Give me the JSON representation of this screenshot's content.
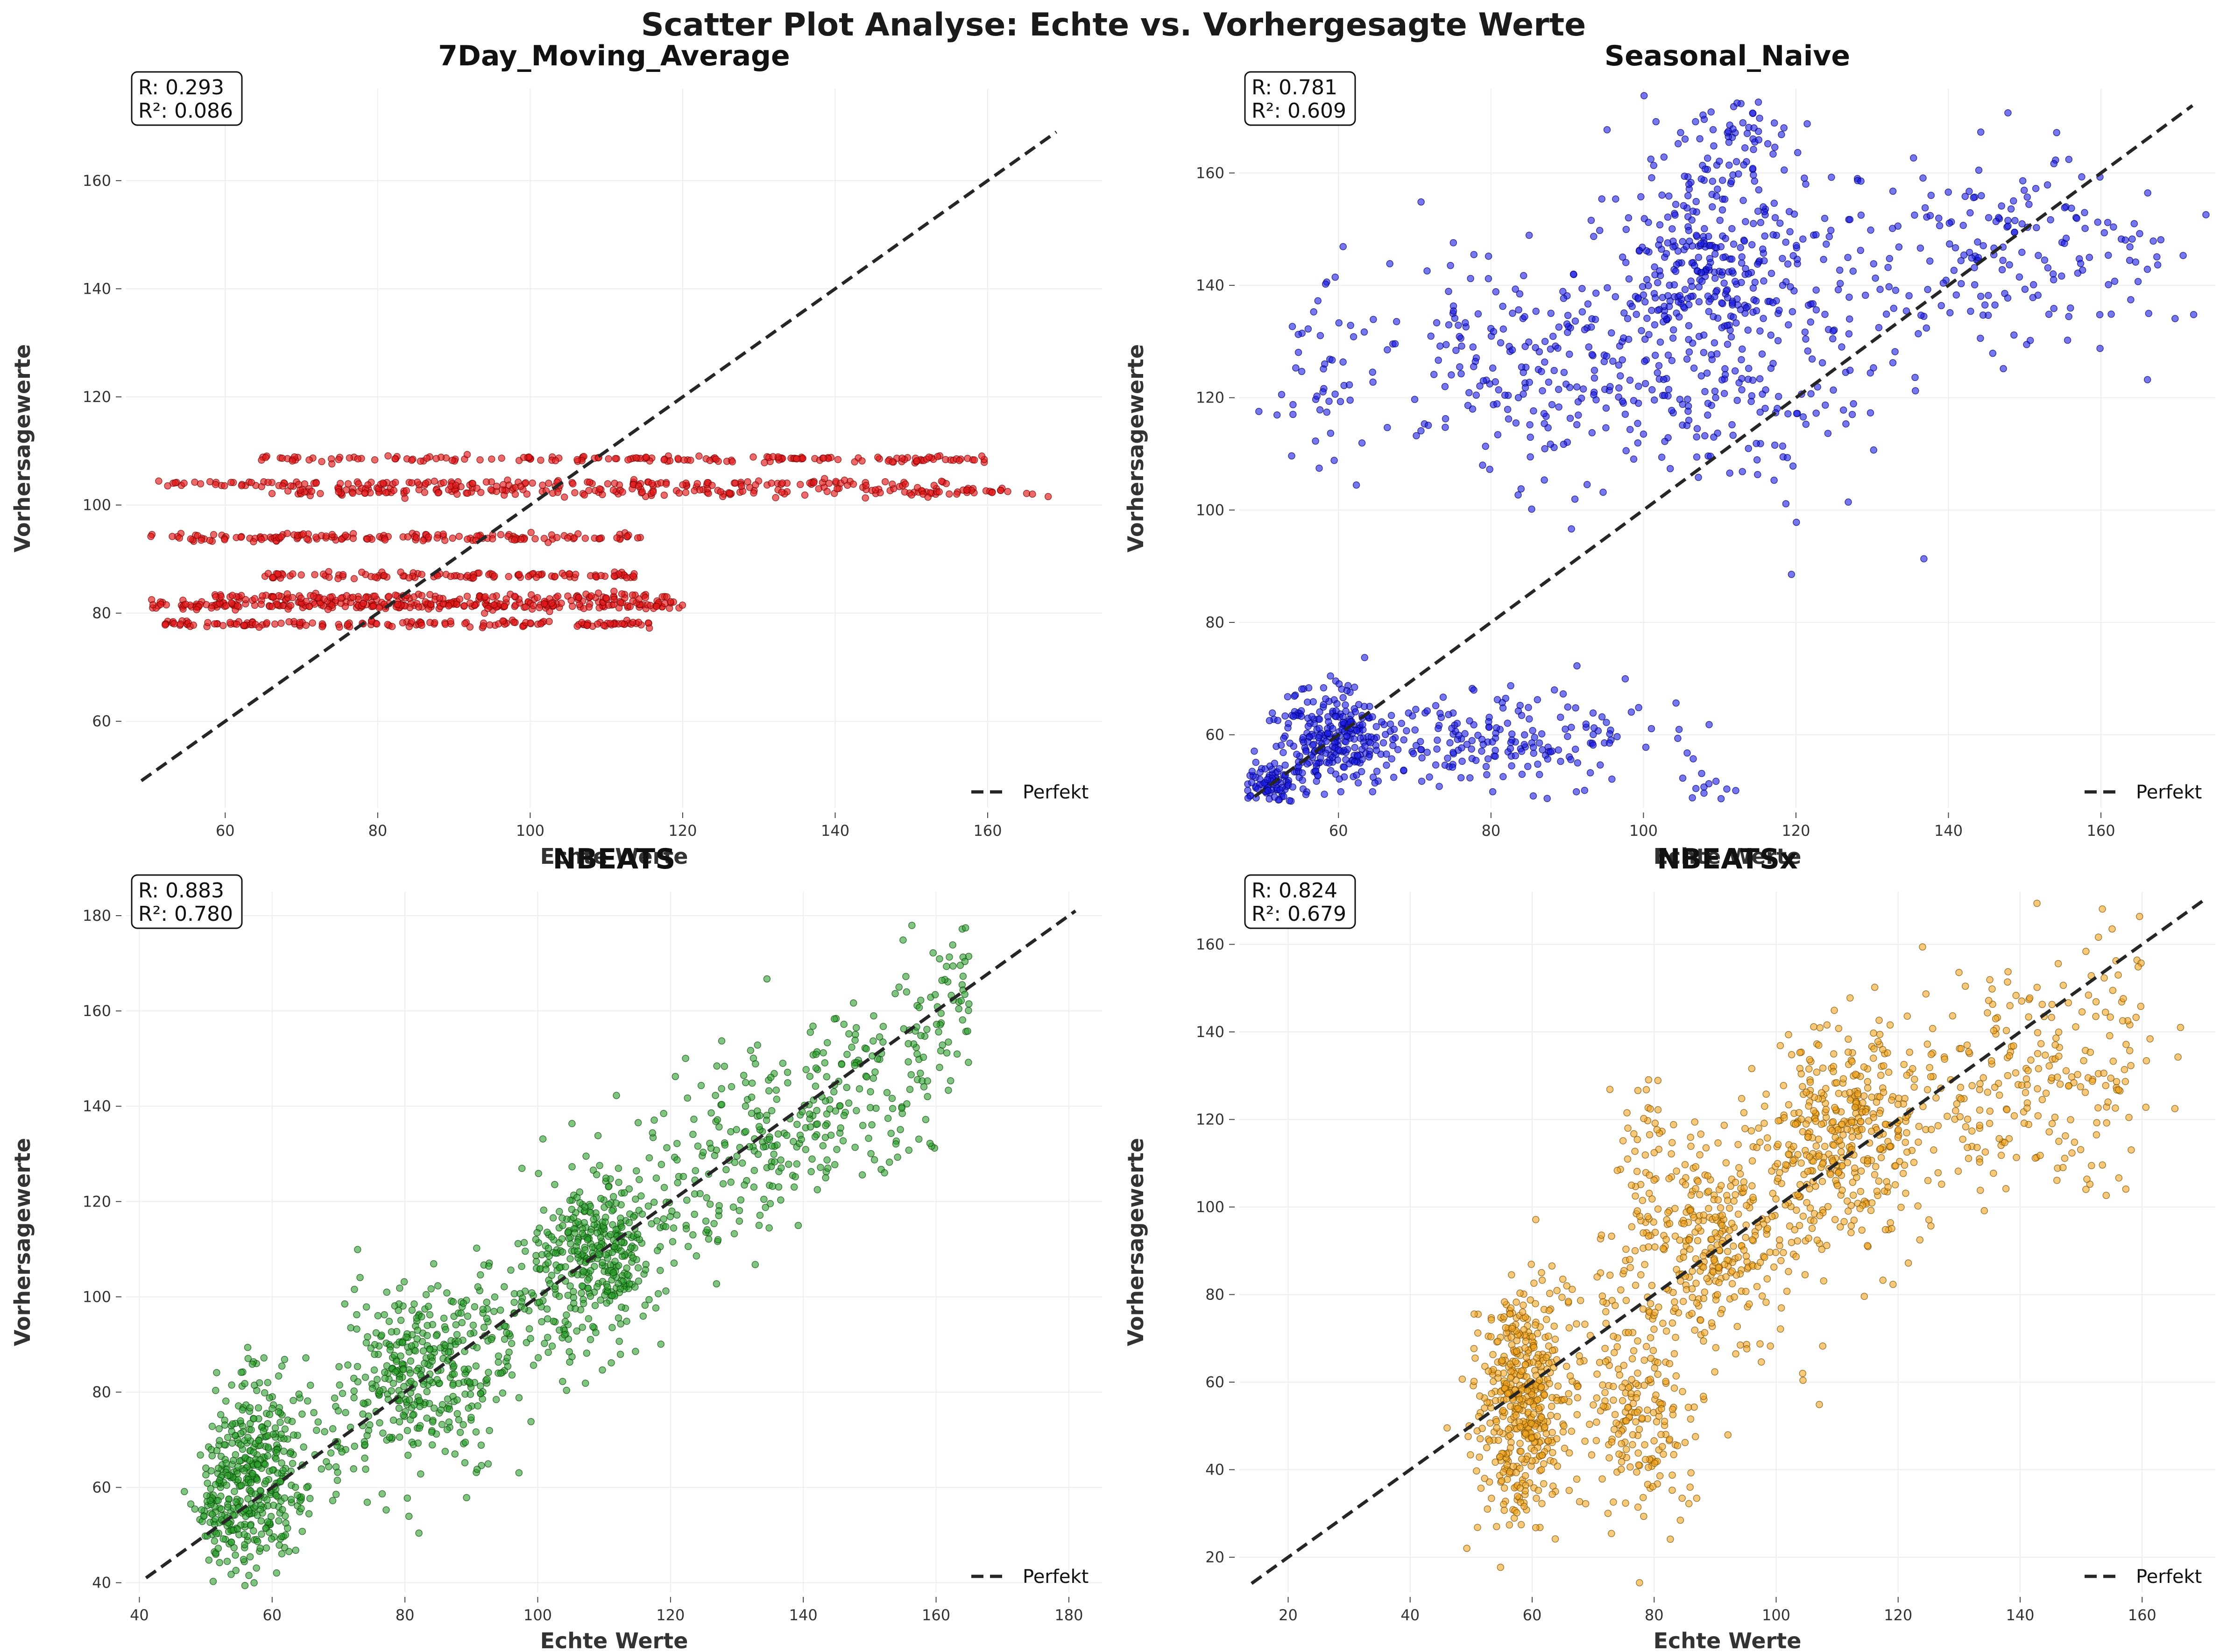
{
  "figure": {
    "title": "Scatter Plot Analyse: Echte vs. Vorhergesagte Werte"
  },
  "chart_data": [
    {
      "type": "scatter",
      "title": "7Day_Moving_Average",
      "xlabel": "Echte Werte",
      "ylabel": "Vorhersagewerte",
      "xlim": [
        47,
        175
      ],
      "ylim": [
        44,
        177
      ],
      "xticks": [
        60,
        80,
        100,
        120,
        140,
        160
      ],
      "yticks": [
        60,
        80,
        100,
        120,
        140,
        160
      ],
      "stats": {
        "r": "R: 0.293",
        "r2": "R²: 0.086"
      },
      "legend": {
        "label": "Perfekt",
        "position": "lower right"
      },
      "reference_line": [
        49,
        169
      ],
      "grid": true,
      "marker_color": "#e31a1c",
      "edge_color": "#7a0000",
      "point_opacity": 0.65,
      "point_radius": 7,
      "seed": 11,
      "series": [
        {
          "x": [],
          "y": []
        }
      ],
      "clusters": [
        {
          "type": "band",
          "y": 81.5,
          "x0": 50,
          "x1": 120,
          "n": 260,
          "yj": 0.4
        },
        {
          "type": "band",
          "y": 83,
          "x0": 58,
          "x1": 118,
          "n": 120,
          "yj": 0.3
        },
        {
          "type": "band",
          "y": 78,
          "x0": 52,
          "x1": 116,
          "n": 150,
          "yj": 0.3
        },
        {
          "type": "band",
          "y": 87,
          "x0": 64,
          "x1": 115,
          "n": 110,
          "yj": 0.3
        },
        {
          "type": "band",
          "y": 94,
          "x0": 50,
          "x1": 116,
          "n": 150,
          "yj": 0.4
        },
        {
          "type": "band",
          "y": 102.5,
          "x0": 66,
          "x1": 168,
          "n": 190,
          "yj": 0.4
        },
        {
          "type": "band",
          "y": 104,
          "x0": 51,
          "x1": 155,
          "n": 160,
          "yj": 0.3
        },
        {
          "type": "band",
          "y": 108.5,
          "x0": 64,
          "x1": 160,
          "n": 170,
          "yj": 0.3
        }
      ]
    },
    {
      "type": "scatter",
      "title": "Seasonal_Naive",
      "xlabel": "Echte Werte",
      "ylabel": "Vorhersagewerte",
      "xlim": [
        47,
        175
      ],
      "ylim": [
        47,
        175
      ],
      "xticks": [
        60,
        80,
        100,
        120,
        140,
        160
      ],
      "yticks": [
        60,
        80,
        100,
        120,
        140,
        160
      ],
      "stats": {
        "r": "R: 0.781",
        "r2": "R²: 0.609"
      },
      "legend": {
        "label": "Perfekt",
        "position": "lower right"
      },
      "reference_line": [
        49,
        172
      ],
      "grid": true,
      "marker_color": "#1a1ae6",
      "edge_color": "#00006e",
      "point_opacity": 0.6,
      "point_radius": 7,
      "seed": 23,
      "series": [
        {
          "x": [],
          "y": []
        }
      ],
      "clusters": [
        {
          "type": "blob",
          "cx": 51,
          "cy": 51,
          "sx": 2.2,
          "sy": 2,
          "n": 90
        },
        {
          "type": "blob",
          "cx": 59,
          "cy": 59,
          "sx": 3.5,
          "sy": 4.5,
          "n": 260
        },
        {
          "type": "blob",
          "cx": 80,
          "cy": 59,
          "sx": 10,
          "sy": 4,
          "n": 200
        },
        {
          "type": "blob",
          "cx": 108,
          "cy": 51,
          "sx": 2,
          "sy": 1.5,
          "n": 10
        },
        {
          "type": "blob",
          "cx": 58,
          "cy": 123,
          "sx": 3,
          "sy": 8,
          "n": 40
        },
        {
          "type": "blob",
          "cx": 86,
          "cy": 125,
          "sx": 12,
          "sy": 10,
          "n": 250
        },
        {
          "type": "blob",
          "cx": 108,
          "cy": 145,
          "sx": 7,
          "sy": 10,
          "n": 260
        },
        {
          "type": "blob",
          "cx": 113,
          "cy": 125,
          "sx": 10,
          "sy": 12,
          "n": 160
        },
        {
          "type": "blob",
          "cx": 140,
          "cy": 145,
          "sx": 14,
          "sy": 10,
          "n": 200
        },
        {
          "type": "blob",
          "cx": 112,
          "cy": 166,
          "sx": 5,
          "sy": 4,
          "n": 50
        },
        {
          "type": "blob",
          "cx": 160,
          "cy": 145,
          "sx": 6,
          "sy": 8,
          "n": 30
        }
      ]
    },
    {
      "type": "scatter",
      "title": "NBEATS",
      "xlabel": "Echte Werte",
      "ylabel": "Vorhersagewerte",
      "xlim": [
        38,
        185
      ],
      "ylim": [
        38,
        185
      ],
      "xticks": [
        40,
        60,
        80,
        100,
        120,
        140,
        160,
        180
      ],
      "yticks": [
        40,
        60,
        80,
        100,
        120,
        140,
        160,
        180
      ],
      "stats": {
        "r": "R: 0.883",
        "r2": "R²: 0.780"
      },
      "legend": {
        "label": "Perfekt",
        "position": "lower right"
      },
      "reference_line": [
        41,
        181
      ],
      "grid": true,
      "marker_color": "#2ca02c",
      "edge_color": "#0b4a0b",
      "point_opacity": 0.6,
      "point_radius": 7,
      "seed": 37,
      "series": [
        {
          "x": [],
          "y": []
        }
      ],
      "clusters": [
        {
          "type": "diag",
          "x0": 50,
          "x1": 165,
          "slope": 0.98,
          "icpt": 1,
          "sd": 9,
          "n": 650
        },
        {
          "type": "blob",
          "cx": 58,
          "cy": 62,
          "sx": 3.5,
          "sy": 11,
          "n": 300
        },
        {
          "type": "blob",
          "cx": 83,
          "cy": 84,
          "sx": 6,
          "sy": 10,
          "n": 250
        },
        {
          "type": "blob",
          "cx": 109,
          "cy": 110,
          "sx": 5,
          "sy": 10,
          "n": 280
        },
        {
          "type": "blob",
          "cx": 52,
          "cy": 56,
          "sx": 2,
          "sy": 5,
          "n": 70
        },
        {
          "type": "blob",
          "cx": 140,
          "cy": 140,
          "sx": 12,
          "sy": 10,
          "n": 120
        }
      ]
    },
    {
      "type": "scatter",
      "title": "NBEATSx",
      "xlabel": "Echte Werte",
      "ylabel": "Vorhersagewerte",
      "xlim": [
        12,
        172
      ],
      "ylim": [
        12,
        172
      ],
      "xticks": [
        20,
        40,
        60,
        80,
        100,
        120,
        140,
        160
      ],
      "yticks": [
        20,
        40,
        60,
        80,
        100,
        120,
        140,
        160
      ],
      "stats": {
        "r": "R: 0.824",
        "r2": "R²: 0.679"
      },
      "legend": {
        "label": "Perfekt",
        "position": "lower right"
      },
      "reference_line": [
        14,
        170
      ],
      "grid": true,
      "marker_color": "#f2a51f",
      "edge_color": "#7a4f00",
      "point_opacity": 0.6,
      "point_radius": 7,
      "seed": 53,
      "series": [
        {
          "x": [],
          "y": []
        }
      ],
      "clusters": [
        {
          "type": "blob",
          "cx": 58,
          "cy": 55,
          "sx": 3.5,
          "sy": 13,
          "n": 450
        },
        {
          "type": "blob",
          "cx": 78,
          "cy": 55,
          "sx": 5,
          "sy": 14,
          "n": 200
        },
        {
          "type": "blob",
          "cx": 90,
          "cy": 92,
          "sx": 7,
          "sy": 12,
          "n": 280
        },
        {
          "type": "blob",
          "cx": 111,
          "cy": 118,
          "sx": 6,
          "sy": 11,
          "n": 320
        },
        {
          "type": "blob",
          "cx": 140,
          "cy": 128,
          "sx": 13,
          "sy": 12,
          "n": 180
        },
        {
          "type": "diag",
          "x0": 55,
          "x1": 160,
          "slope": 0.92,
          "icpt": 2,
          "sd": 14,
          "n": 260
        },
        {
          "type": "blob",
          "cx": 78,
          "cy": 115,
          "sx": 2,
          "sy": 10,
          "n": 40
        }
      ]
    }
  ]
}
